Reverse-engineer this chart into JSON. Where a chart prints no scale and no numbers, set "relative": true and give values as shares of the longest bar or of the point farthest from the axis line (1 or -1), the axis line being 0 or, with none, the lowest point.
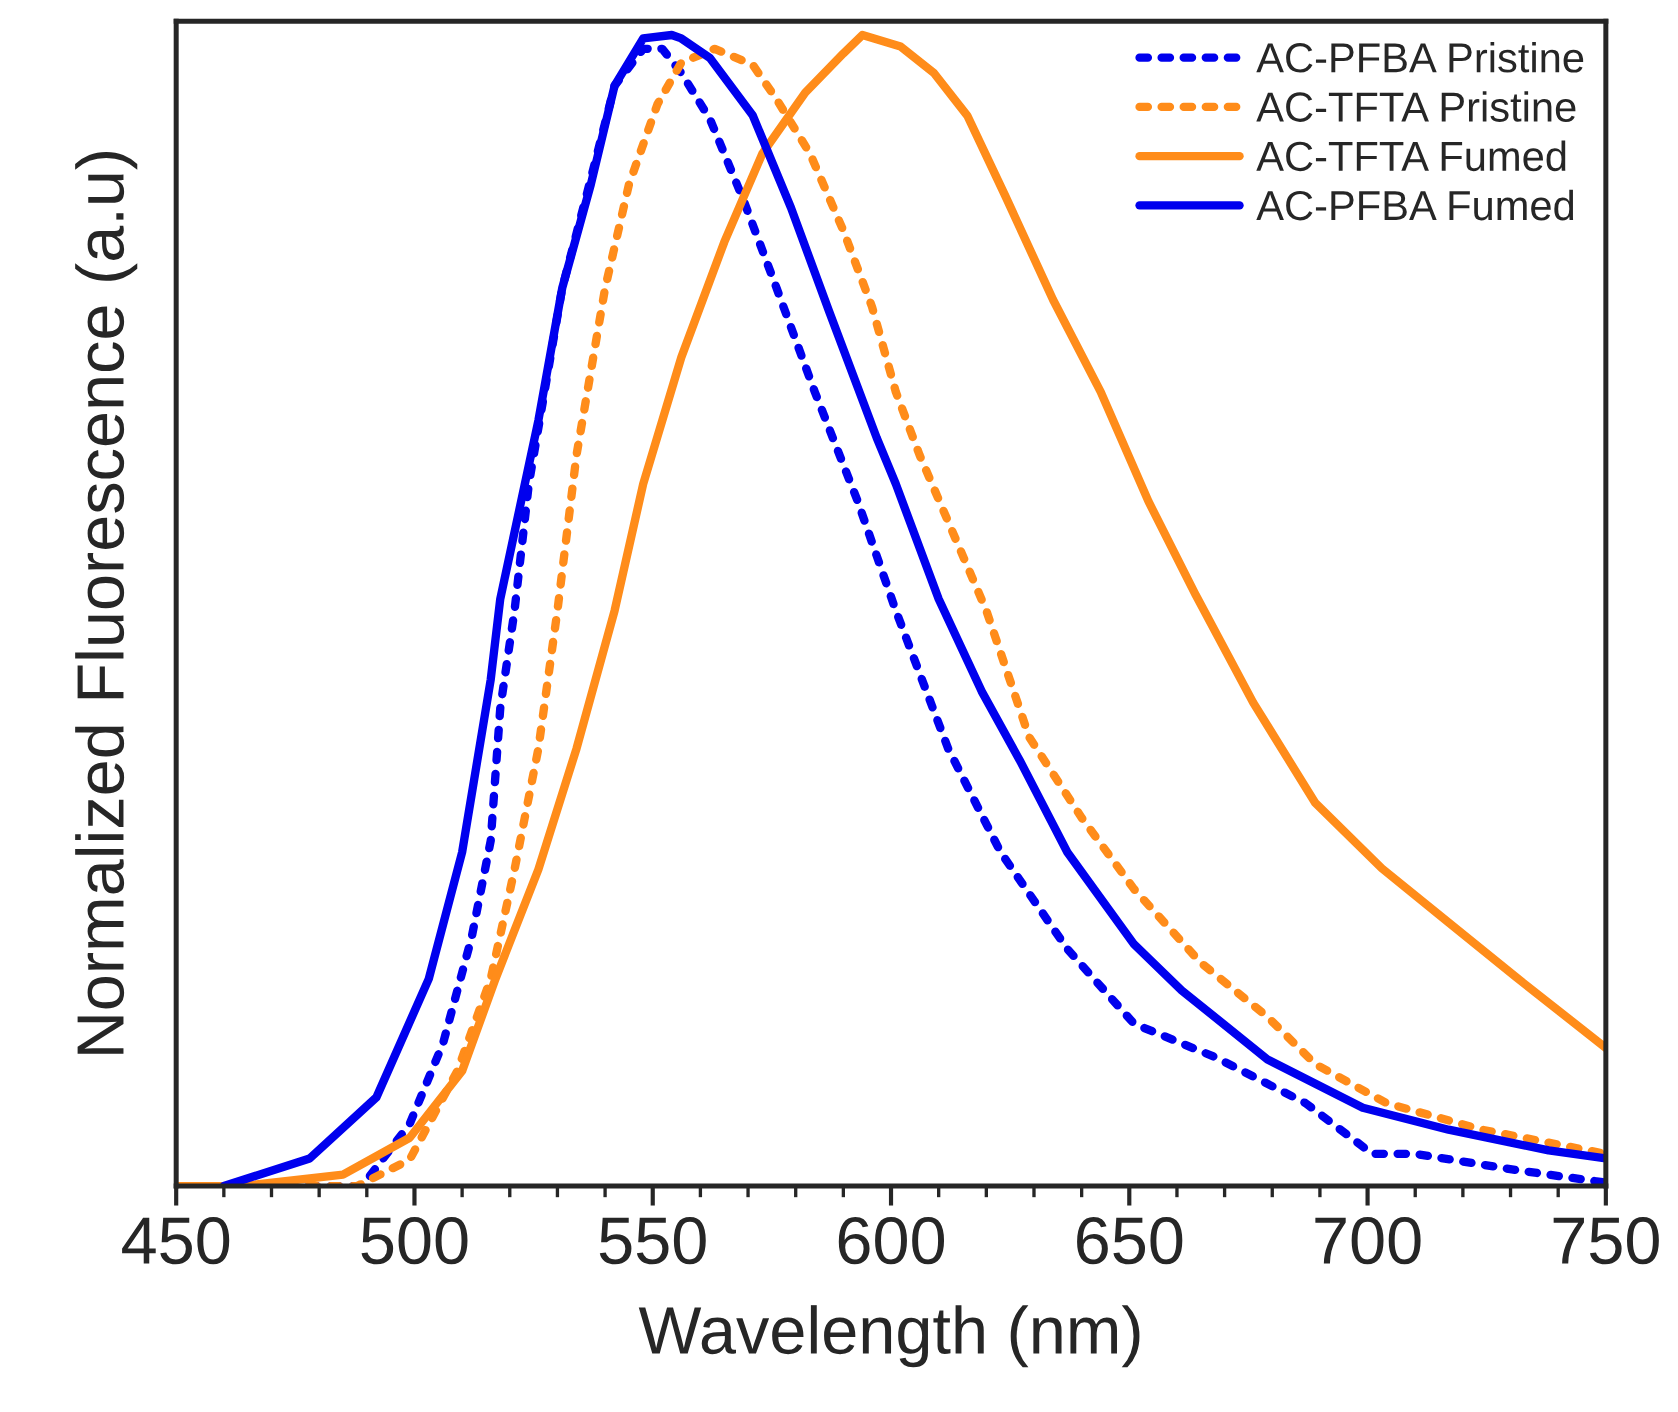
{
  "chart_data": {
    "type": "line",
    "relative": true,
    "xlabel": "Wavelength (nm)",
    "ylabel": "Normalized Fluorescence (a.u)",
    "xlim": [
      450,
      750
    ],
    "xticks": [
      450,
      500,
      550,
      600,
      650,
      700,
      750
    ],
    "tick_labels": "x",
    "legend": "top right",
    "grid": false,
    "series": [
      {
        "name": "AC-PFBA Pristine",
        "color": "#0000ee",
        "line_style": "dotted",
        "x": [
          450,
          460,
          489,
          499,
          506,
          512,
          516,
          518,
          521,
          524,
          531,
          537,
          542,
          548,
          552,
          556,
          562,
          569,
          576,
          584,
          593,
          601,
          612,
          623,
          637,
          651,
          668,
          687,
          701,
          710,
          731,
          750
        ],
        "values": [
          0,
          0,
          0,
          0.054,
          0.124,
          0.216,
          0.3,
          0.415,
          0.5,
          0.61,
          0.78,
          0.875,
          0.956,
          0.988,
          0.988,
          0.967,
          0.927,
          0.857,
          0.78,
          0.69,
          0.595,
          0.5,
          0.38,
          0.29,
          0.206,
          0.141,
          0.112,
          0.072,
          0.028,
          0.028,
          0.014,
          0.003
        ]
      },
      {
        "name": "AC-TFTA Pristine",
        "color": "#ff8c1a",
        "line_style": "dotted",
        "x": [
          450,
          488,
          499,
          509,
          516,
          521,
          526,
          530,
          534,
          540,
          545,
          551,
          556,
          563,
          571,
          576,
          583,
          590,
          596,
          601,
          606,
          620,
          629,
          640,
          651,
          665,
          679,
          689,
          704,
          724,
          750
        ],
        "values": [
          0,
          0,
          0.023,
          0.1,
          0.18,
          0.275,
          0.38,
          0.5,
          0.635,
          0.78,
          0.87,
          0.94,
          0.976,
          0.988,
          0.974,
          0.944,
          0.897,
          0.83,
          0.764,
          0.69,
          0.635,
          0.5,
          0.39,
          0.32,
          0.258,
          0.194,
          0.147,
          0.106,
          0.072,
          0.049,
          0.028
        ]
      },
      {
        "name": "AC-TFTA Fumed",
        "color": "#ff8c1a",
        "line_style": "solid",
        "x": [
          450,
          464,
          485,
          499,
          510,
          517,
          526,
          534,
          542,
          548,
          556,
          565,
          573,
          582,
          590,
          594,
          602,
          609,
          616,
          624,
          634,
          644,
          654,
          664,
          676,
          689,
          703,
          717,
          731,
          750
        ],
        "values": [
          0,
          0,
          0.01,
          0.042,
          0.1,
          0.18,
          0.275,
          0.38,
          0.5,
          0.61,
          0.72,
          0.82,
          0.897,
          0.95,
          0.984,
          1.0,
          0.99,
          0.967,
          0.93,
          0.86,
          0.77,
          0.69,
          0.595,
          0.513,
          0.42,
          0.333,
          0.276,
          0.229,
          0.182,
          0.12
        ]
      },
      {
        "name": "AC-PFBA Fumed",
        "color": "#0000ee",
        "line_style": "solid",
        "x": [
          460,
          478,
          492,
          503,
          510,
          516,
          518,
          526,
          531,
          537,
          542,
          548,
          554,
          556,
          562,
          571,
          579,
          587,
          597,
          601,
          610,
          619,
          627,
          637,
          651,
          661,
          679,
          699,
          717,
          738,
          750
        ],
        "values": [
          0,
          0.024,
          0.077,
          0.18,
          0.29,
          0.44,
          0.51,
          0.665,
          0.78,
          0.87,
          0.956,
          0.997,
          1.0,
          0.997,
          0.98,
          0.93,
          0.85,
          0.76,
          0.65,
          0.61,
          0.51,
          0.43,
          0.37,
          0.29,
          0.21,
          0.17,
          0.11,
          0.068,
          0.049,
          0.031,
          0.024
        ]
      }
    ]
  }
}
